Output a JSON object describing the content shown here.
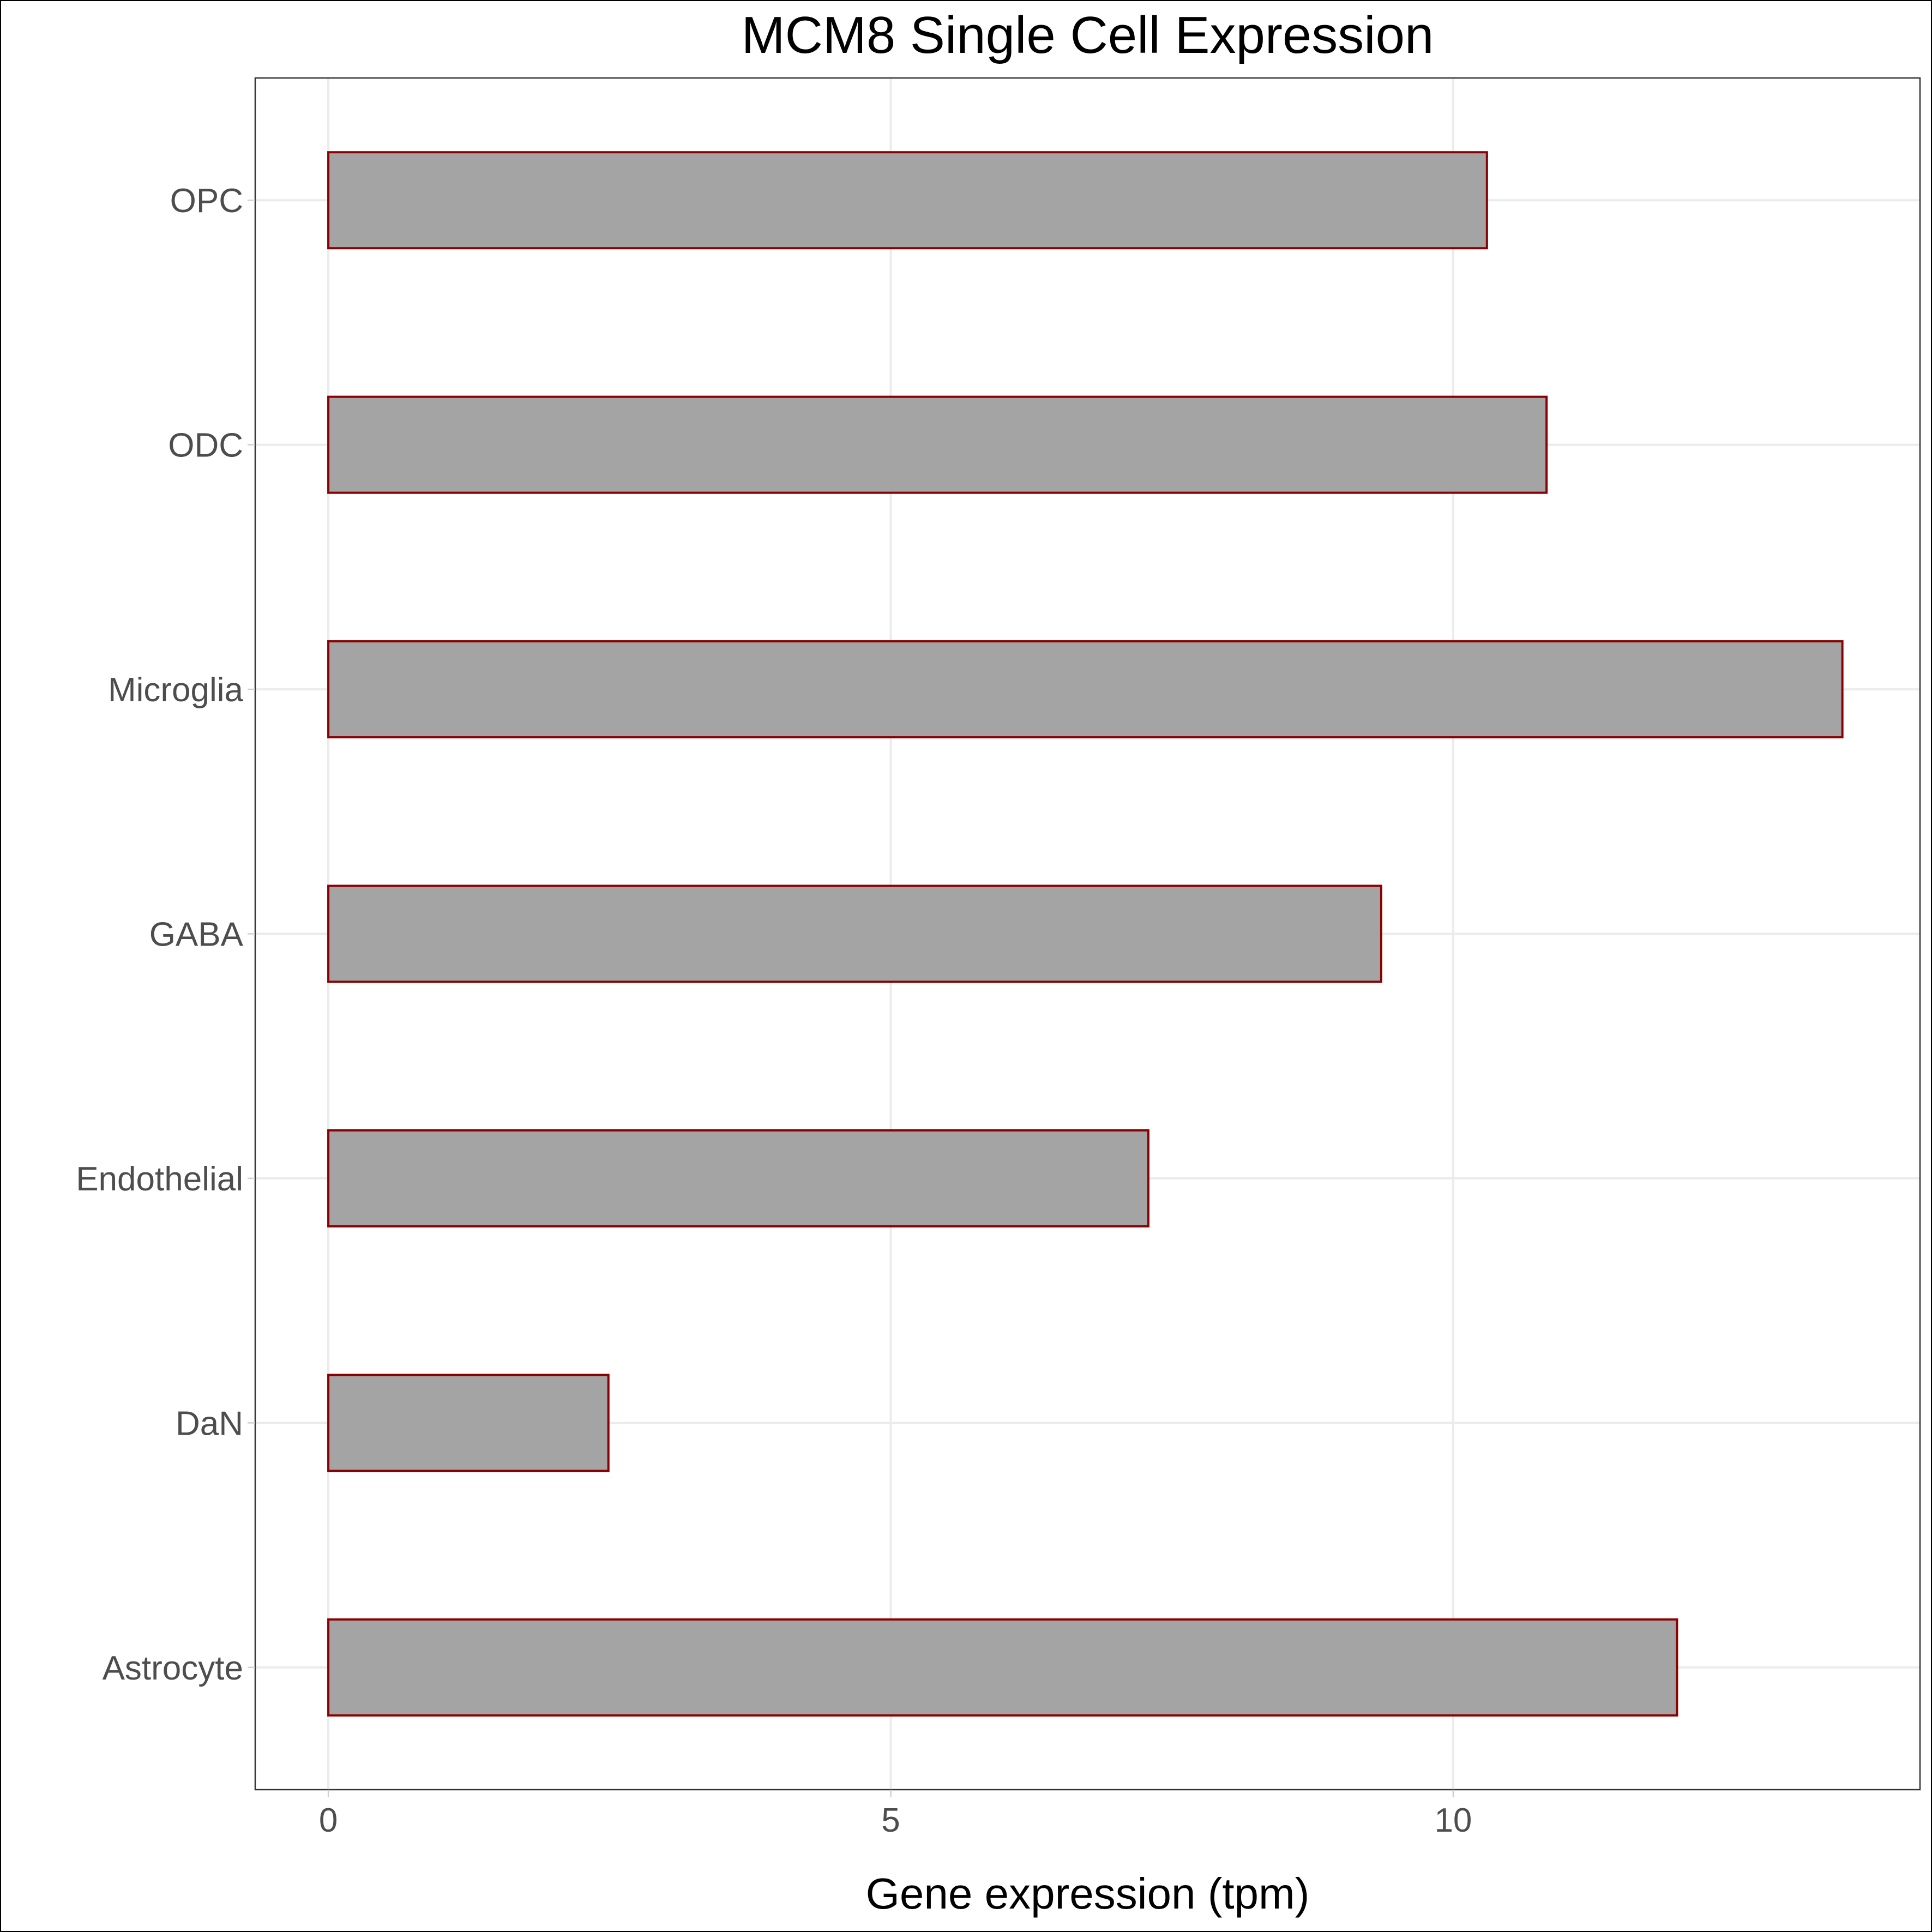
{
  "chart_data": {
    "type": "bar",
    "orientation": "horizontal",
    "title": "MCM8 Single Cell Expression",
    "xlabel": "Gene expression (tpm)",
    "ylabel": "",
    "categories": [
      "OPC",
      "ODC",
      "Microglia",
      "GABA",
      "Endothelial",
      "DaN",
      "Astrocyte"
    ],
    "values": [
      10.3,
      10.83,
      13.46,
      9.36,
      7.29,
      2.49,
      11.99
    ],
    "xlim": [
      -0.65,
      14.15
    ],
    "xticks": [
      0,
      5,
      10
    ],
    "xtick_labels": [
      "0",
      "5",
      "10"
    ],
    "grid": true,
    "legend": "none",
    "colors": {
      "bar_fill": "#a4a4a4",
      "bar_outline": "#8b0000",
      "grid": "#ebebeb",
      "tick_text": "#4d4d4d"
    }
  }
}
